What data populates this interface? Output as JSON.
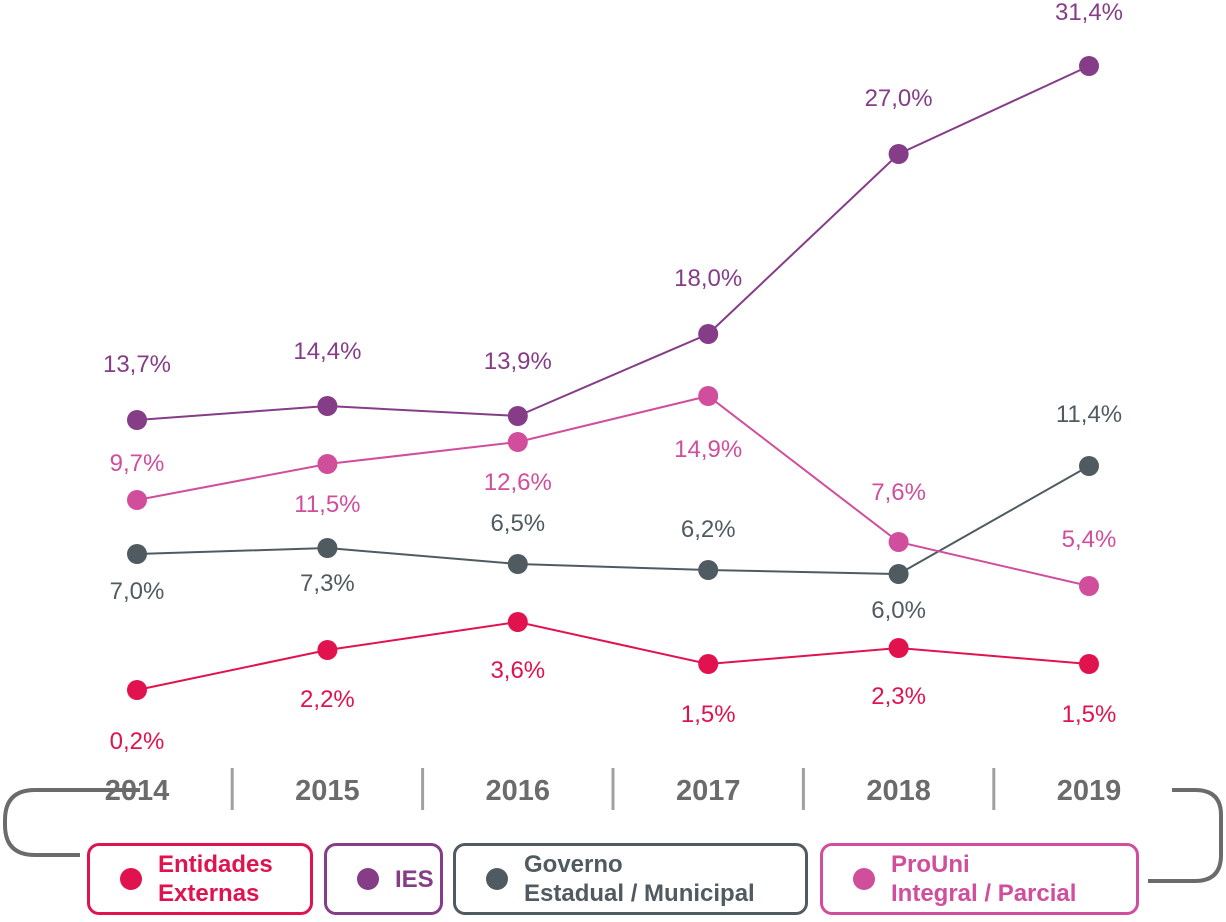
{
  "chart_data": {
    "type": "line",
    "title": "",
    "xlabel": "",
    "ylabel": "",
    "x": [
      "2014",
      "2015",
      "2016",
      "2017",
      "2018",
      "2019"
    ],
    "ylim": [
      0,
      35
    ],
    "grid": false,
    "legend_placement": "bottom",
    "series": [
      {
        "name": "Entidades Externas",
        "legend_lines": [
          "Entidades",
          "Externas"
        ],
        "color": "#e0134f",
        "values": [
          0.2,
          2.2,
          3.6,
          1.5,
          2.3,
          1.5
        ],
        "labels": [
          "0,2%",
          "2,2%",
          "3,6%",
          "1,5%",
          "2,3%",
          "1,5%"
        ]
      },
      {
        "name": "IES",
        "legend_lines": [
          "IES"
        ],
        "color": "#853d87",
        "values": [
          13.7,
          14.4,
          13.9,
          18.0,
          27.0,
          31.4
        ],
        "labels": [
          "13,7%",
          "14,4%",
          "13,9%",
          "18,0%",
          "27,0%",
          "31,4%"
        ]
      },
      {
        "name": "Governo Estadual / Municipal",
        "legend_lines": [
          "Governo",
          "Estadual / Municipal"
        ],
        "color": "#505b61",
        "values": [
          7.0,
          7.3,
          6.5,
          6.2,
          6.0,
          11.4
        ],
        "labels": [
          "7,0%",
          "7,3%",
          "6,5%",
          "6,2%",
          "6,0%",
          "11,4%"
        ]
      },
      {
        "name": "ProUni Integral / Parcial",
        "legend_lines": [
          "ProUni",
          "Integral / Parcial"
        ],
        "color": "#d04e9c",
        "values": [
          9.7,
          11.5,
          12.6,
          14.9,
          7.6,
          5.4
        ],
        "labels": [
          "9,7%",
          "11,5%",
          "12,6%",
          "14,9%",
          "7,6%",
          "5,4%"
        ]
      }
    ]
  }
}
